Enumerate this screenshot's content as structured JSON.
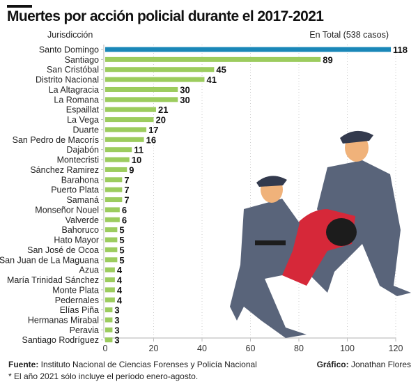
{
  "chart_data": {
    "type": "bar",
    "orientation": "horizontal",
    "title": "Muertes por acción policial durante el 2017-2021",
    "ylabel": "Jurisdicción",
    "total_label": "En Total (538 casos)",
    "categories": [
      "Santo Domingo",
      "Santiago",
      "San Cristóbal",
      "Distrito Nacional",
      "La Altagracia",
      "La Romana",
      "Espaillat",
      "La Vega",
      "Duarte",
      "San Pedro de Macorís",
      "Dajabón",
      "Montecristi",
      "Sánchez Ramirez",
      "Barahona",
      "Puerto Plata",
      "Samaná",
      "Monseñor Nouel",
      "Valverde",
      "Bahoruco",
      "Hato Mayor",
      "San José de Ocoa",
      "San Juan de La Maguana",
      "Azua",
      "María Trinidad Sánchez",
      "Monte Plata",
      "Pedernales",
      "Elías Piña",
      "Hermanas Mirabal",
      "Peravia",
      "Santiago Rodríguez"
    ],
    "values": [
      118,
      89,
      45,
      41,
      30,
      30,
      21,
      20,
      17,
      16,
      11,
      10,
      9,
      7,
      7,
      7,
      6,
      6,
      5,
      5,
      5,
      5,
      4,
      4,
      4,
      4,
      3,
      3,
      3,
      3
    ],
    "xlim": [
      0,
      120
    ],
    "xticks": [
      "0",
      "20",
      "40",
      "60",
      "80",
      "100",
      "120"
    ],
    "grid": true,
    "highlight_color": "#1a87b8",
    "bar_color": "#9ccc5e"
  },
  "footer": {
    "fuente_label": "Fuente:",
    "fuente": " Instituto Nacional de Ciencias Forenses y Policía Nacional",
    "grafico_label": "Gráfico:",
    "grafico": " Jonathan Flores",
    "nota": "* El año 2021 sólo incluye el período enero-agosto."
  }
}
